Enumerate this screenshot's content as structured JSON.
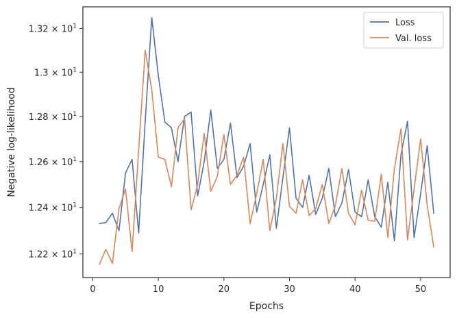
{
  "chart_data": {
    "type": "line",
    "xlabel": "Epochs",
    "ylabel": "Negative log-likelihood",
    "x_ticks": [
      0,
      10,
      20,
      30,
      40,
      50
    ],
    "y_ticks": [
      {
        "value": 12.2,
        "mantissa": "1.22",
        "base": "10",
        "exponent": "1"
      },
      {
        "value": 12.4,
        "mantissa": "1.24",
        "base": "10",
        "exponent": "1"
      },
      {
        "value": 12.6,
        "mantissa": "1.26",
        "base": "10",
        "exponent": "1"
      },
      {
        "value": 12.8,
        "mantissa": "1.28",
        "base": "10",
        "exponent": "1"
      },
      {
        "value": 13.0,
        "mantissa": "1.3",
        "base": "10",
        "exponent": "1"
      },
      {
        "value": 13.2,
        "mantissa": "1.32",
        "base": "10",
        "exponent": "1"
      }
    ],
    "xlim": [
      -1.5,
      54.5
    ],
    "ylim": [
      12.1,
      13.3
    ],
    "yscale": "log",
    "grid": false,
    "legend_position": "upper-right",
    "x": [
      1,
      2,
      3,
      4,
      5,
      6,
      7,
      8,
      9,
      10,
      11,
      12,
      13,
      14,
      15,
      16,
      17,
      18,
      19,
      20,
      21,
      22,
      23,
      24,
      25,
      26,
      27,
      28,
      29,
      30,
      31,
      32,
      33,
      34,
      35,
      36,
      37,
      38,
      39,
      40,
      41,
      42,
      43,
      44,
      45,
      46,
      47,
      48,
      49,
      50,
      51,
      52
    ],
    "series": [
      {
        "name": "Loss",
        "color": "#4c72b0",
        "values": [
          12.33,
          12.335,
          12.375,
          12.3,
          12.55,
          12.61,
          12.29,
          12.78,
          13.25,
          12.985,
          12.775,
          12.75,
          12.6,
          12.8,
          12.82,
          12.45,
          12.6,
          12.83,
          12.57,
          12.61,
          12.77,
          12.53,
          12.58,
          12.68,
          12.38,
          12.5,
          12.63,
          12.31,
          12.53,
          12.75,
          12.44,
          12.4,
          12.54,
          12.37,
          12.44,
          12.57,
          12.36,
          12.42,
          12.565,
          12.38,
          12.36,
          12.52,
          12.36,
          12.315,
          12.51,
          12.255,
          12.63,
          12.78,
          12.27,
          12.46,
          12.67,
          12.375
        ]
      },
      {
        "name": "Val. loss",
        "color": "#dd8452",
        "values": [
          12.155,
          12.22,
          12.16,
          12.395,
          12.48,
          12.21,
          12.65,
          13.1,
          12.92,
          12.62,
          12.61,
          12.49,
          12.75,
          12.79,
          12.39,
          12.5,
          12.725,
          12.47,
          12.535,
          12.72,
          12.5,
          12.54,
          12.62,
          12.33,
          12.46,
          12.61,
          12.3,
          12.44,
          12.68,
          12.405,
          12.375,
          12.52,
          12.365,
          12.395,
          12.5,
          12.33,
          12.41,
          12.57,
          12.375,
          12.325,
          12.475,
          12.345,
          12.34,
          12.545,
          12.27,
          12.57,
          12.745,
          12.26,
          12.48,
          12.7,
          12.41,
          12.23
        ]
      }
    ]
  }
}
